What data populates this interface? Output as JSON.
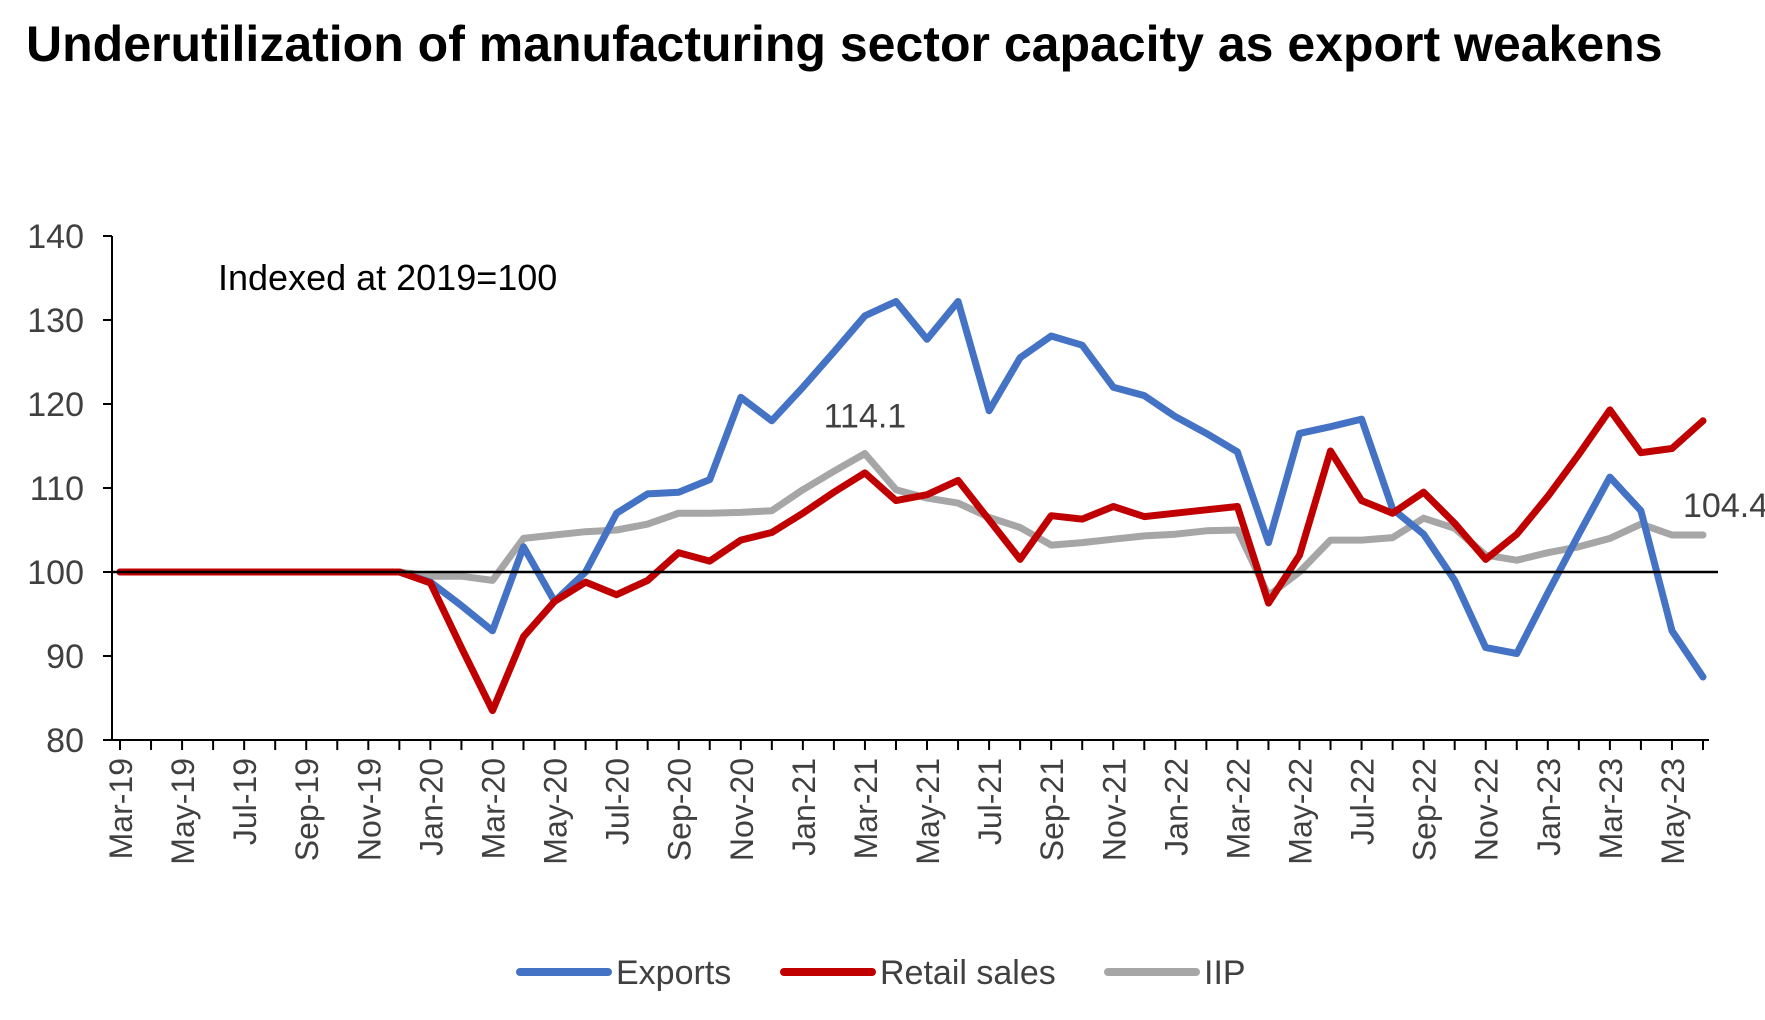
{
  "title": "Underutilization of manufacturing sector capacity as export weakens",
  "chart_data": {
    "type": "line",
    "title": "Underutilization of manufacturing sector capacity as export weakens",
    "annotation": "Indexed at 2019=100",
    "reference_line": 100,
    "ylim": [
      80,
      140
    ],
    "yticks": [
      80,
      90,
      100,
      110,
      120,
      130,
      140
    ],
    "grid": false,
    "legend_position": "bottom",
    "x": [
      "Mar-19",
      "Apr-19",
      "May-19",
      "Jun-19",
      "Jul-19",
      "Aug-19",
      "Sep-19",
      "Oct-19",
      "Nov-19",
      "Dec-19",
      "Jan-20",
      "Feb-20",
      "Mar-20",
      "Apr-20",
      "May-20",
      "Jun-20",
      "Jul-20",
      "Aug-20",
      "Sep-20",
      "Oct-20",
      "Nov-20",
      "Dec-20",
      "Jan-21",
      "Feb-21",
      "Mar-21",
      "Apr-21",
      "May-21",
      "Jun-21",
      "Jul-21",
      "Aug-21",
      "Sep-21",
      "Oct-21",
      "Nov-21",
      "Dec-21",
      "Jan-22",
      "Feb-22",
      "Mar-22",
      "Apr-22",
      "May-22",
      "Jun-22",
      "Jul-22",
      "Aug-22",
      "Sep-22",
      "Oct-22",
      "Nov-22",
      "Dec-22",
      "Jan-23",
      "Feb-23",
      "Mar-23",
      "Apr-23",
      "May-23",
      "Jun-23"
    ],
    "xtick_labels": [
      "Mar-19",
      "May-19",
      "Jul-19",
      "Sep-19",
      "Nov-19",
      "Jan-20",
      "Mar-20",
      "May-20",
      "Jul-20",
      "Sep-20",
      "Nov-20",
      "Jan-21",
      "Mar-21",
      "May-21",
      "Jul-21",
      "Sep-21",
      "Nov-21",
      "Jan-22",
      "Mar-22",
      "May-22",
      "Jul-22",
      "Sep-22",
      "Nov-22",
      "Jan-23",
      "Mar-23",
      "May-23"
    ],
    "series": [
      {
        "name": "Exports",
        "color": "#4472C4",
        "values": [
          100,
          100,
          100,
          100,
          100,
          100,
          100,
          100,
          100,
          100,
          98.8,
          96,
          93,
          103,
          96.5,
          100,
          107,
          109.3,
          109.5,
          111,
          120.8,
          118,
          122,
          126.2,
          130.5,
          132.2,
          127.7,
          132.2,
          119.2,
          125.5,
          128.1,
          127,
          122,
          121,
          118.5,
          116.5,
          114.3,
          103.5,
          116.5,
          117.3,
          118.2,
          107.5,
          104.5,
          99,
          91,
          90.3,
          97.5,
          104.5,
          111.3,
          107.3,
          93,
          87.5
        ]
      },
      {
        "name": "Retail sales",
        "color": "#C00000",
        "values": [
          100,
          100,
          100,
          100,
          100,
          100,
          100,
          100,
          100,
          100,
          98.7,
          91,
          83.5,
          92.3,
          96.5,
          98.8,
          97.3,
          99,
          102.3,
          101.3,
          103.8,
          104.7,
          107,
          109.5,
          111.8,
          108.5,
          109.2,
          110.9,
          106.2,
          101.5,
          106.7,
          106.3,
          107.8,
          106.6,
          107,
          107.4,
          107.8,
          96.3,
          102,
          114.4,
          108.5,
          107,
          109.5,
          105.8,
          101.5,
          104.5,
          109,
          114,
          119.3,
          114.2,
          114.7,
          118
        ]
      },
      {
        "name": "IIP",
        "color": "#A6A6A6",
        "values": [
          100,
          100,
          100,
          100,
          100,
          100,
          100,
          100,
          100,
          100,
          99.5,
          99.5,
          99,
          104,
          104.4,
          104.8,
          105,
          105.7,
          107,
          107,
          107.1,
          107.3,
          109.8,
          112,
          114.1,
          109.8,
          108.8,
          108.2,
          106.5,
          105.3,
          103.2,
          103.5,
          103.9,
          104.3,
          104.5,
          104.9,
          105,
          97.2,
          100,
          103.8,
          103.8,
          104.1,
          106.4,
          105.2,
          102,
          101.4,
          102.3,
          103,
          104,
          105.7,
          104.4,
          104.4
        ]
      }
    ],
    "data_labels": [
      {
        "text": "114.1",
        "series": "IIP",
        "x": "Mar-21",
        "y": 114.1
      },
      {
        "text": "104.4",
        "series": "IIP",
        "x": "Jun-23",
        "y": 104.4
      }
    ]
  }
}
